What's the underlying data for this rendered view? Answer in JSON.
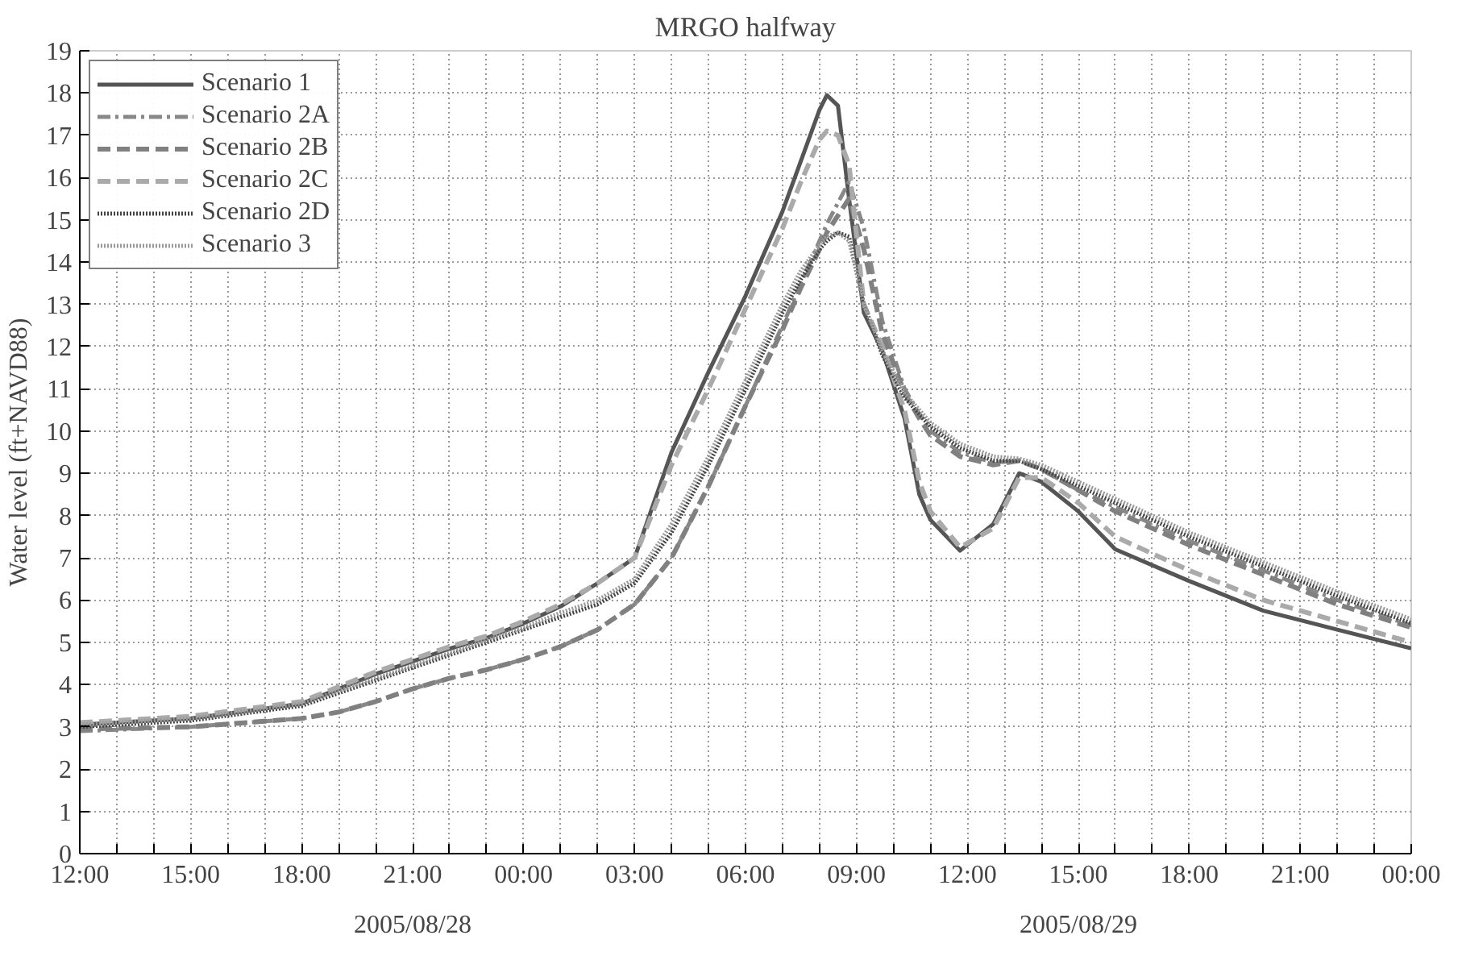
{
  "chart_data": {
    "type": "line",
    "title": "MRGO halfway",
    "ylabel": "Water level (ft+NAVD88)",
    "annotations": [
      "2005/08/28",
      "2005/08/29"
    ],
    "x": [
      "2005-08-28T12:00",
      "2005-08-28T15:00",
      "2005-08-28T18:00",
      "2005-08-28T19:00",
      "2005-08-28T20:00",
      "2005-08-28T21:00",
      "2005-08-28T22:00",
      "2005-08-28T23:00",
      "2005-08-29T00:00",
      "2005-08-29T01:00",
      "2005-08-29T02:00",
      "2005-08-29T03:00",
      "2005-08-29T04:00",
      "2005-08-29T05:00",
      "2005-08-29T06:00",
      "2005-08-29T07:00",
      "2005-08-29T07:30",
      "2005-08-29T08:00",
      "2005-08-29T08:12",
      "2005-08-29T08:30",
      "2005-08-29T08:48",
      "2005-08-29T09:12",
      "2005-08-29T09:42",
      "2005-08-29T10:18",
      "2005-08-29T10:42",
      "2005-08-29T11:00",
      "2005-08-29T11:48",
      "2005-08-29T12:42",
      "2005-08-29T13:24",
      "2005-08-29T14:00",
      "2005-08-29T15:00",
      "2005-08-29T16:00",
      "2005-08-29T18:00",
      "2005-08-29T20:00",
      "2005-08-29T22:00",
      "2005-08-30T00:00"
    ],
    "series": [
      {
        "name": "Scenario 1",
        "color": "#555555",
        "line_style": "solid",
        "values": [
          3.05,
          3.2,
          3.55,
          3.9,
          4.25,
          4.55,
          4.85,
          5.1,
          5.45,
          5.85,
          6.4,
          7.0,
          9.5,
          11.4,
          13.2,
          15.2,
          16.4,
          17.6,
          17.95,
          17.7,
          15.5,
          12.8,
          11.9,
          10.3,
          8.5,
          7.9,
          7.17,
          7.8,
          9.0,
          8.8,
          8.1,
          7.2,
          6.45,
          5.75,
          5.3,
          4.86
        ]
      },
      {
        "name": "Scenario 2A",
        "color": "#888888",
        "line_style": "dashdot",
        "values": [
          2.9,
          3.0,
          3.2,
          3.35,
          3.6,
          3.9,
          4.15,
          4.35,
          4.6,
          4.9,
          5.3,
          5.9,
          7.0,
          8.7,
          10.6,
          12.5,
          13.5,
          14.5,
          14.9,
          15.4,
          15.9,
          14.8,
          12.6,
          11.0,
          10.4,
          10.0,
          9.5,
          9.25,
          9.3,
          9.1,
          8.6,
          8.2,
          7.4,
          6.7,
          6.0,
          5.4
        ]
      },
      {
        "name": "Scenario 2B",
        "color": "#808080",
        "line_style": "dashed",
        "values": [
          2.95,
          3.0,
          3.2,
          3.35,
          3.6,
          3.9,
          4.15,
          4.35,
          4.6,
          4.9,
          5.3,
          5.9,
          7.0,
          8.7,
          10.6,
          12.4,
          13.4,
          14.3,
          14.7,
          15.1,
          15.5,
          14.3,
          12.3,
          10.9,
          10.3,
          9.9,
          9.4,
          9.2,
          9.3,
          9.1,
          8.6,
          8.1,
          7.3,
          6.6,
          5.9,
          5.35
        ]
      },
      {
        "name": "Scenario 2C",
        "color": "#aaaaaa",
        "line_style": "dashed",
        "values": [
          3.1,
          3.25,
          3.6,
          3.95,
          4.3,
          4.6,
          4.9,
          5.15,
          5.5,
          5.9,
          6.4,
          7.0,
          9.2,
          11.0,
          12.9,
          14.8,
          15.9,
          16.9,
          17.1,
          17.0,
          16.3,
          13.0,
          12.0,
          10.5,
          8.8,
          8.1,
          7.25,
          7.7,
          8.9,
          8.9,
          8.3,
          7.5,
          6.7,
          6.0,
          5.5,
          5.0
        ]
      },
      {
        "name": "Scenario 2D",
        "color": "#444444",
        "line_style": "dotted",
        "values": [
          3.0,
          3.15,
          3.5,
          3.8,
          4.1,
          4.4,
          4.7,
          5.0,
          5.3,
          5.6,
          5.9,
          6.4,
          7.6,
          9.2,
          11.0,
          12.8,
          13.6,
          14.3,
          14.5,
          14.7,
          14.6,
          13.0,
          11.8,
          10.8,
          10.4,
          10.1,
          9.6,
          9.3,
          9.3,
          9.1,
          8.7,
          8.3,
          7.5,
          6.8,
          6.1,
          5.45
        ]
      },
      {
        "name": "Scenario 3",
        "color": "#999999",
        "line_style": "dotted",
        "values": [
          3.05,
          3.2,
          3.55,
          3.85,
          4.15,
          4.45,
          4.75,
          5.05,
          5.35,
          5.7,
          6.0,
          6.5,
          7.8,
          9.4,
          11.2,
          13.0,
          13.8,
          14.4,
          14.6,
          14.7,
          14.5,
          13.0,
          11.9,
          10.9,
          10.5,
          10.2,
          9.7,
          9.4,
          9.35,
          9.2,
          8.8,
          8.4,
          7.6,
          6.9,
          6.2,
          5.55
        ]
      }
    ],
    "xlim": [
      "2005-08-28T12:00",
      "2005-08-30T00:00"
    ],
    "xticks": [
      {
        "value": "2005-08-28T12:00",
        "label": "12:00"
      },
      {
        "value": "2005-08-28T13:00",
        "label": null
      },
      {
        "value": "2005-08-28T14:00",
        "label": null
      },
      {
        "value": "2005-08-28T15:00",
        "label": "15:00"
      },
      {
        "value": "2005-08-28T16:00",
        "label": null
      },
      {
        "value": "2005-08-28T17:00",
        "label": null
      },
      {
        "value": "2005-08-28T18:00",
        "label": "18:00"
      },
      {
        "value": "2005-08-28T19:00",
        "label": null
      },
      {
        "value": "2005-08-28T20:00",
        "label": null
      },
      {
        "value": "2005-08-28T21:00",
        "label": "21:00"
      },
      {
        "value": "2005-08-28T22:00",
        "label": null
      },
      {
        "value": "2005-08-28T23:00",
        "label": null
      },
      {
        "value": "2005-08-29T00:00",
        "label": "00:00"
      },
      {
        "value": "2005-08-29T01:00",
        "label": null
      },
      {
        "value": "2005-08-29T02:00",
        "label": null
      },
      {
        "value": "2005-08-29T03:00",
        "label": "03:00"
      },
      {
        "value": "2005-08-29T04:00",
        "label": null
      },
      {
        "value": "2005-08-29T05:00",
        "label": null
      },
      {
        "value": "2005-08-29T06:00",
        "label": "06:00"
      },
      {
        "value": "2005-08-29T07:00",
        "label": null
      },
      {
        "value": "2005-08-29T08:00",
        "label": null
      },
      {
        "value": "2005-08-29T09:00",
        "label": "09:00"
      },
      {
        "value": "2005-08-29T10:00",
        "label": null
      },
      {
        "value": "2005-08-29T11:00",
        "label": null
      },
      {
        "value": "2005-08-29T12:00",
        "label": "12:00"
      },
      {
        "value": "2005-08-29T13:00",
        "label": null
      },
      {
        "value": "2005-08-29T14:00",
        "label": null
      },
      {
        "value": "2005-08-29T15:00",
        "label": "15:00"
      },
      {
        "value": "2005-08-29T16:00",
        "label": null
      },
      {
        "value": "2005-08-29T17:00",
        "label": null
      },
      {
        "value": "2005-08-29T18:00",
        "label": "18:00"
      },
      {
        "value": "2005-08-29T19:00",
        "label": null
      },
      {
        "value": "2005-08-29T20:00",
        "label": null
      },
      {
        "value": "2005-08-29T21:00",
        "label": "21:00"
      },
      {
        "value": "2005-08-29T22:00",
        "label": null
      },
      {
        "value": "2005-08-29T23:00",
        "label": null
      },
      {
        "value": "2005-08-30T00:00",
        "label": "00:00"
      }
    ],
    "ylim": [
      0,
      19
    ],
    "yticks": [
      0,
      1,
      2,
      3,
      4,
      5,
      6,
      7,
      8,
      9,
      10,
      11,
      12,
      13,
      14,
      15,
      16,
      17,
      18,
      19
    ],
    "grid": true,
    "legend": "top left"
  }
}
